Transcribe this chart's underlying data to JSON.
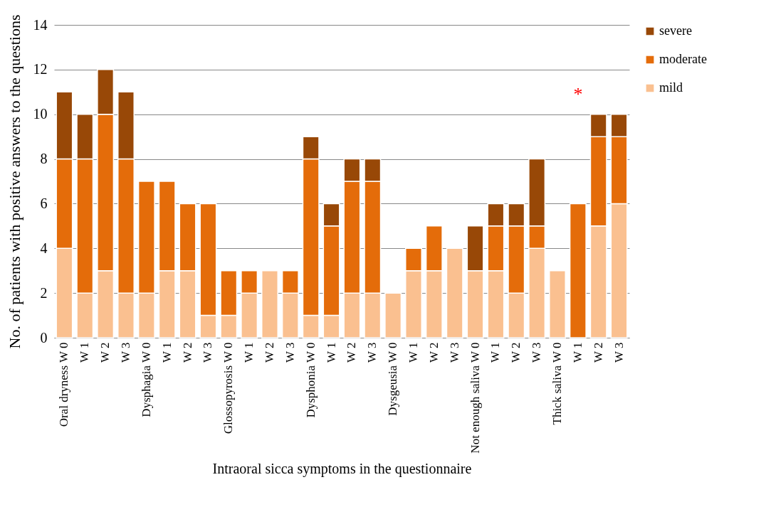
{
  "chart_data": {
    "type": "bar",
    "stacked": true,
    "xlabel": "Intraoral sicca symptoms in the questionnaire",
    "ylabel": "No. of patients with positive answers to the questions",
    "categories": [
      "Oral dryness W 0",
      "W 1",
      "W 2",
      "W 3",
      "Dysphagia W 0",
      "W 1",
      "W 2",
      "W 3",
      "Glossopyrosis W 0",
      "W 1",
      "W 2",
      "W 3",
      "Dysphonia W 0",
      "W 1",
      "W 2",
      "W 3",
      "Dysgeusia W 0",
      "W 1",
      "W 2",
      "W 3",
      "Not enough saliva W 0",
      "W 1",
      "W 2",
      "W 3",
      "Thick saliva W 0",
      "W 1",
      "W 2",
      "W 3"
    ],
    "series": [
      {
        "name": "mild",
        "color": "#fac090",
        "values": [
          4,
          2,
          3,
          2,
          2,
          3,
          3,
          1,
          1,
          2,
          3,
          2,
          1,
          1,
          2,
          2,
          2,
          3,
          3,
          4,
          3,
          3,
          2,
          4,
          3,
          0,
          5,
          6
        ]
      },
      {
        "name": "moderate",
        "color": "#e46c0a",
        "values": [
          4,
          6,
          7,
          6,
          5,
          4,
          3,
          5,
          2,
          1,
          0,
          1,
          7,
          4,
          5,
          5,
          0,
          1,
          2,
          0,
          0,
          2,
          3,
          1,
          0,
          6,
          4,
          3
        ]
      },
      {
        "name": "severe",
        "color": "#984807",
        "values": [
          3,
          2,
          2,
          3,
          0,
          0,
          0,
          0,
          0,
          0,
          0,
          0,
          1,
          1,
          1,
          1,
          0,
          0,
          0,
          0,
          2,
          1,
          1,
          3,
          0,
          0,
          1,
          1
        ]
      }
    ],
    "ylim": [
      0,
      14
    ],
    "yticks": [
      0,
      2,
      4,
      6,
      8,
      10,
      12,
      14
    ],
    "grid": "y",
    "legend": "right",
    "annotations": [
      "*"
    ]
  }
}
